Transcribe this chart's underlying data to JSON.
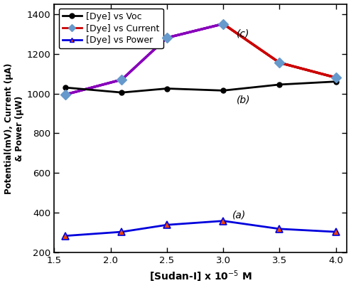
{
  "x": [
    1.6,
    2.1,
    2.5,
    3.0,
    3.5,
    4.0
  ],
  "voc": [
    1030,
    1005,
    1025,
    1015,
    1045,
    1060
  ],
  "current": [
    995,
    1070,
    1280,
    1350,
    1155,
    1080
  ],
  "power": [
    285,
    305,
    340,
    360,
    320,
    305
  ],
  "xlabel": "[Sudan-I] x 10$^{-5}$ M",
  "ylabel": "Potential(mV), Current (μA)\n& Power (μW)",
  "legend_voc": "[Dye] vs Voc",
  "legend_current": "[Dye] vs Current",
  "legend_power": "[Dye] vs Power",
  "label_a": "(a)",
  "label_b": "(b)",
  "label_c": "(c)",
  "ylim": [
    200,
    1450
  ],
  "xlim": [
    1.5,
    4.1
  ],
  "yticks": [
    200,
    400,
    600,
    800,
    1000,
    1200,
    1400
  ],
  "xticks": [
    1.5,
    2.0,
    2.5,
    3.0,
    3.5,
    4.0
  ],
  "color_voc": "#000000",
  "color_power": "#0000dd",
  "color_purple": "#8800bb",
  "color_red": "#cc0000",
  "color_marker_current": "#6699cc",
  "bg_color": "#ffffff"
}
